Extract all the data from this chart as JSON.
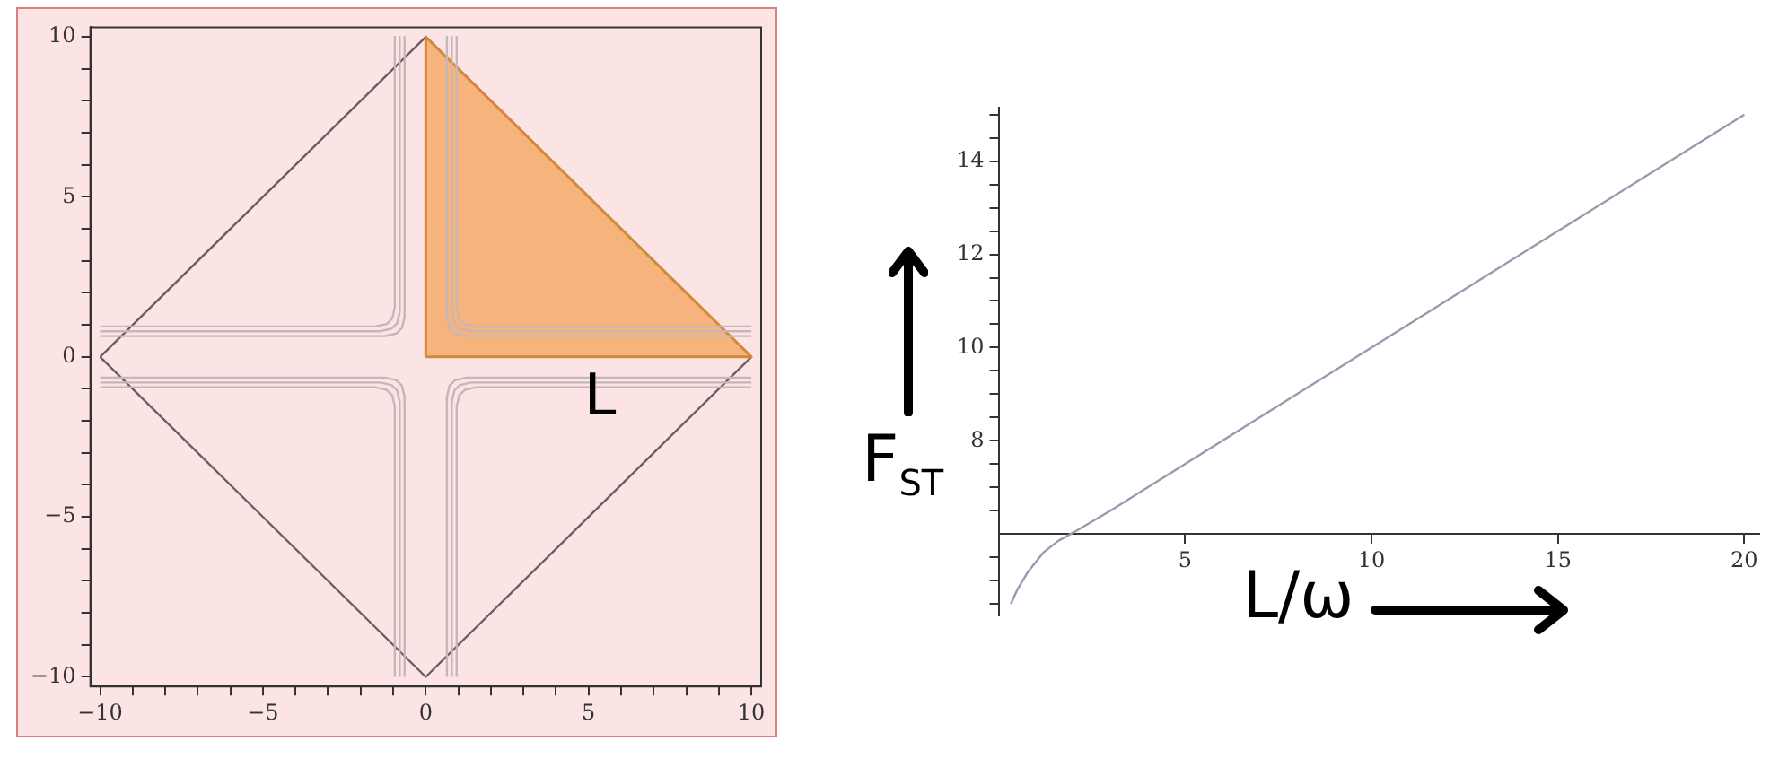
{
  "chart_data": [
    {
      "type": "line",
      "xlim": [
        -10.3,
        10.3
      ],
      "ylim": [
        -10.3,
        10.3
      ],
      "xticks": [
        {
          "value": -10,
          "label": "−10"
        },
        {
          "value": -9,
          "label": null
        },
        {
          "value": -8,
          "label": null
        },
        {
          "value": -7,
          "label": null
        },
        {
          "value": -6,
          "label": null
        },
        {
          "value": -5,
          "label": "−5"
        },
        {
          "value": -4,
          "label": null
        },
        {
          "value": -3,
          "label": null
        },
        {
          "value": -2,
          "label": null
        },
        {
          "value": -1,
          "label": null
        },
        0,
        {
          "value": 1,
          "label": null
        },
        {
          "value": 2,
          "label": null
        },
        {
          "value": 3,
          "label": null
        },
        {
          "value": 4,
          "label": null
        },
        5,
        {
          "value": 6,
          "label": null
        },
        {
          "value": 7,
          "label": null
        },
        {
          "value": 8,
          "label": null
        },
        {
          "value": 9,
          "label": null
        },
        10
      ],
      "yticks": [
        {
          "value": -10,
          "label": "−10"
        },
        {
          "value": -9,
          "label": null
        },
        {
          "value": -8,
          "label": null
        },
        {
          "value": -7,
          "label": null
        },
        {
          "value": -6,
          "label": null
        },
        {
          "value": -5,
          "label": "−5"
        },
        {
          "value": -4,
          "label": null
        },
        {
          "value": -3,
          "label": null
        },
        {
          "value": -2,
          "label": null
        },
        {
          "value": -1,
          "label": null
        },
        0,
        {
          "value": 1,
          "label": null
        },
        {
          "value": 2,
          "label": null
        },
        {
          "value": 3,
          "label": null
        },
        {
          "value": 4,
          "label": null
        },
        5,
        {
          "value": 6,
          "label": null
        },
        {
          "value": 7,
          "label": null
        },
        {
          "value": 8,
          "label": null
        },
        {
          "value": 9,
          "label": null
        },
        10
      ],
      "grid": false,
      "legend": false,
      "marker": "none",
      "annotations": [
        "L"
      ],
      "series": [
        {
          "color": "#c6b6ba",
          "x": [
            0.65,
            0.65,
            0.73,
            0.9,
            1.25,
            10
          ],
          "values": [
            10,
            1.25,
            0.9,
            0.73,
            0.65,
            0.65
          ]
        },
        {
          "color": "#c6b6ba",
          "x": [
            0.8,
            0.8,
            0.88,
            1.05,
            1.4,
            10
          ],
          "values": [
            10,
            1.4,
            1.05,
            0.88,
            0.8,
            0.8
          ]
        },
        {
          "color": "#c6b6ba",
          "x": [
            0.95,
            0.95,
            1.03,
            1.2,
            1.55,
            10
          ],
          "values": [
            10,
            1.55,
            1.2,
            1.03,
            0.95,
            0.95
          ]
        },
        {
          "color": "#c6b6ba",
          "x": [
            -0.65,
            -0.65,
            -0.73,
            -0.9,
            -1.25,
            -10
          ],
          "values": [
            10,
            1.25,
            0.9,
            0.73,
            0.65,
            0.65
          ]
        },
        {
          "color": "#c6b6ba",
          "x": [
            -0.8,
            -0.8,
            -0.88,
            -1.05,
            -1.4,
            -10
          ],
          "values": [
            10,
            1.4,
            1.05,
            0.88,
            0.8,
            0.8
          ]
        },
        {
          "color": "#c6b6ba",
          "x": [
            -0.95,
            -0.95,
            -1.03,
            -1.2,
            -1.55,
            -10
          ],
          "values": [
            10,
            1.55,
            1.2,
            1.03,
            0.95,
            0.95
          ]
        },
        {
          "color": "#c6b6ba",
          "x": [
            0.65,
            0.65,
            0.73,
            0.9,
            1.25,
            10
          ],
          "values": [
            -10,
            -1.25,
            -0.9,
            -0.73,
            -0.65,
            -0.65
          ]
        },
        {
          "color": "#c6b6ba",
          "x": [
            0.8,
            0.8,
            0.88,
            1.05,
            1.4,
            10
          ],
          "values": [
            -10,
            -1.4,
            -1.05,
            -0.88,
            -0.8,
            -0.8
          ]
        },
        {
          "color": "#c6b6ba",
          "x": [
            0.95,
            0.95,
            1.03,
            1.2,
            1.55,
            10
          ],
          "values": [
            -10,
            -1.55,
            -1.2,
            -1.03,
            -0.95,
            -0.95
          ]
        },
        {
          "color": "#c6b6ba",
          "x": [
            -0.65,
            -0.65,
            -0.73,
            -0.9,
            -1.25,
            -10
          ],
          "values": [
            -10,
            -1.25,
            -0.9,
            -0.73,
            -0.65,
            -0.65
          ]
        },
        {
          "color": "#c6b6ba",
          "x": [
            -0.8,
            -0.8,
            -0.88,
            -1.05,
            -1.4,
            -10
          ],
          "values": [
            -10,
            -1.4,
            -1.05,
            -0.88,
            -0.8,
            -0.8
          ]
        },
        {
          "color": "#c6b6ba",
          "x": [
            -0.95,
            -0.95,
            -1.03,
            -1.2,
            -1.55,
            -10
          ],
          "values": [
            -10,
            -1.55,
            -1.2,
            -1.03,
            -0.95,
            -0.95
          ]
        },
        {
          "type": "area",
          "color": "#f7b37c",
          "x": [
            0,
            0,
            10,
            0
          ],
          "values": [
            0,
            10,
            0,
            0
          ]
        },
        {
          "color": "#6a5e62",
          "x": [
            -10,
            0,
            10
          ],
          "values": [
            0,
            10,
            0
          ]
        },
        {
          "color": "#6a5e62",
          "x": [
            -10,
            0,
            10
          ],
          "values": [
            0,
            -10,
            0
          ]
        }
      ]
    },
    {
      "type": "line",
      "xlabel": "L/ω",
      "ylabel": "F$_{ST}$",
      "xlim": [
        0,
        20.4
      ],
      "ylim": [
        4.25,
        15.15
      ],
      "xticks": [
        5,
        10,
        15,
        20
      ],
      "yticks": [
        {
          "value": 4.5,
          "label": null
        },
        {
          "value": 5,
          "label": null
        },
        {
          "value": 5.5,
          "label": null
        },
        {
          "value": 6.5,
          "label": null
        },
        {
          "value": 7,
          "label": null
        },
        {
          "value": 7.5,
          "label": null
        },
        8,
        {
          "value": 8.5,
          "label": null
        },
        {
          "value": 9,
          "label": null
        },
        {
          "value": 9.5,
          "label": null
        },
        10,
        {
          "value": 10.5,
          "label": null
        },
        {
          "value": 11,
          "label": null
        },
        {
          "value": 11.5,
          "label": null
        },
        12,
        {
          "value": 12.5,
          "label": null
        },
        {
          "value": 13,
          "label": null
        },
        {
          "value": 13.5,
          "label": null
        },
        14,
        {
          "value": 14.5,
          "label": null
        },
        {
          "value": 15,
          "label": null
        }
      ],
      "grid": false,
      "legend": false,
      "marker": "none",
      "series": [
        {
          "color": "#9d98b0",
          "x": [
            0.33,
            0.5,
            0.8,
            1.2,
            1.6,
            2.05,
            3,
            5,
            10,
            15,
            20
          ],
          "values": [
            4.5,
            4.8,
            5.2,
            5.6,
            5.85,
            6.05,
            6.5,
            7.5,
            10,
            12.5,
            15
          ]
        }
      ]
    }
  ]
}
